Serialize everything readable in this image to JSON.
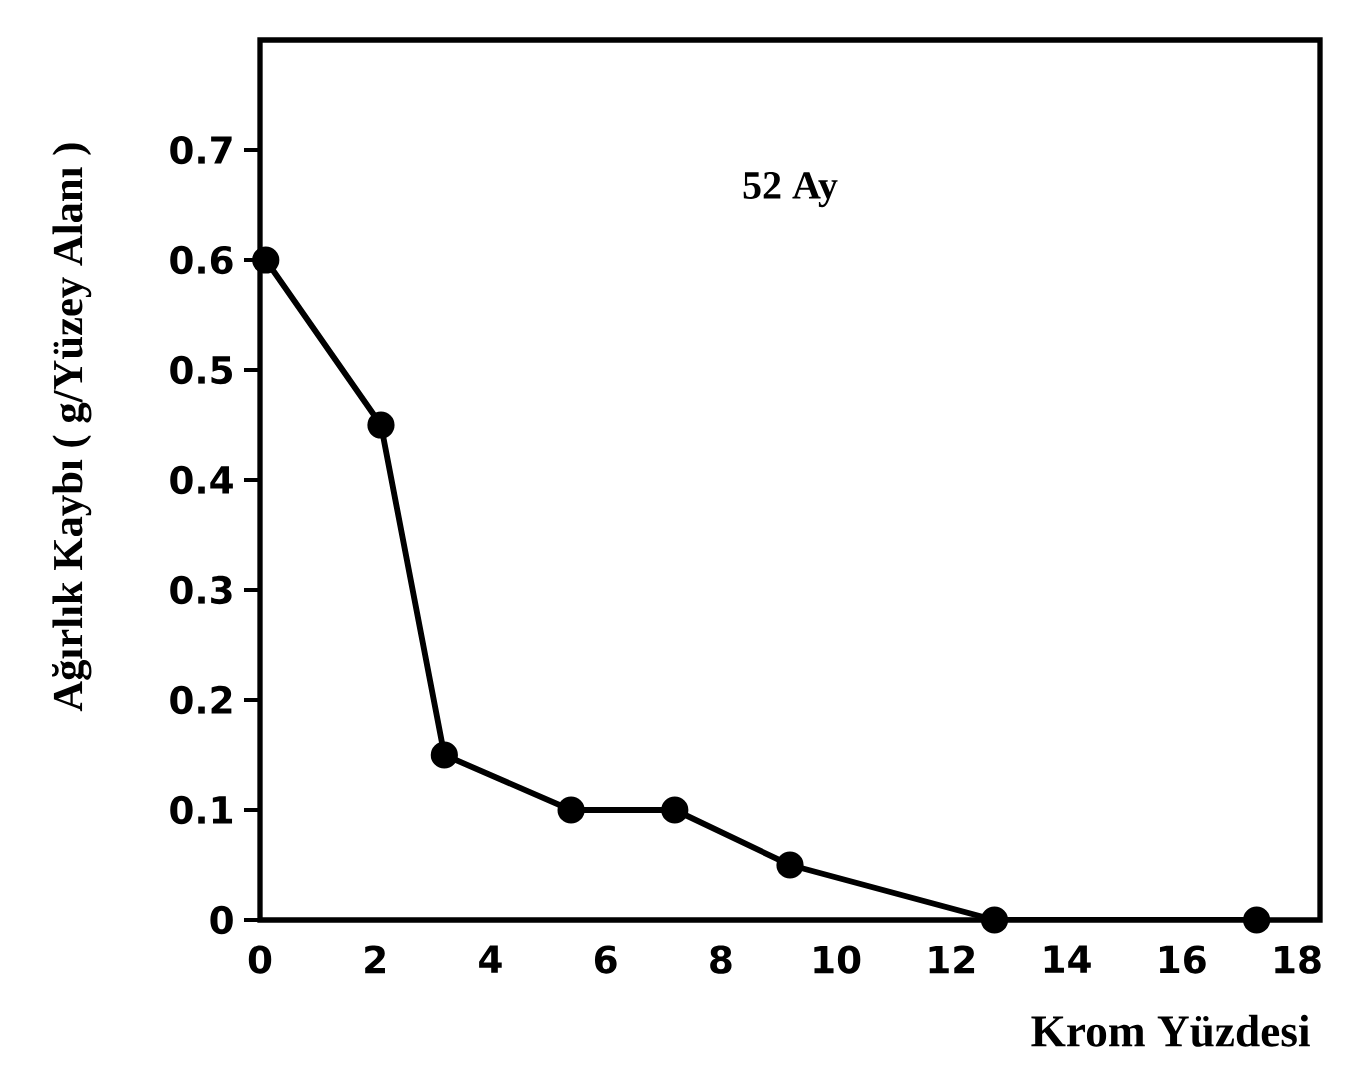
{
  "chart_data": {
    "type": "line",
    "xlabel": "Krom Yüzdesi",
    "ylabel": "Ağırlık  Kaybı ( g/Yüzey Alanı )",
    "annotations": [
      "52  Ay"
    ],
    "x": [
      0.1,
      2.1,
      3.2,
      5.4,
      7.2,
      9.2,
      12.75,
      17.3
    ],
    "series": [
      {
        "color": "#000000",
        "values": [
          0.6,
          0.45,
          0.15,
          0.1,
          0.1,
          0.05,
          0,
          0
        ]
      }
    ],
    "xlim": [
      0,
      18.4
    ],
    "ylim": [
      0,
      0.8
    ],
    "xticks": [
      0,
      2,
      4,
      6,
      8,
      10,
      12,
      14,
      16,
      18
    ],
    "yticks": [
      0,
      0.1,
      0.2,
      0.3,
      0.4,
      0.5,
      0.6,
      0.7
    ],
    "marker": "circle",
    "line_style": "solid"
  }
}
